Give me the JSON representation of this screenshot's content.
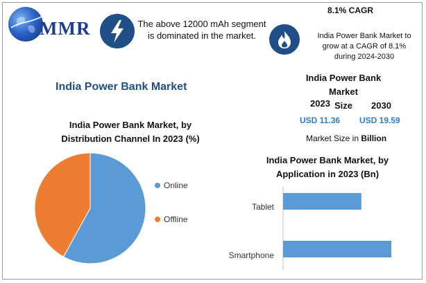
{
  "brand": {
    "logo_text": "MMR"
  },
  "segment_note": {
    "text_line1": "The above 12000 mAh segment",
    "text_line2": "is dominated in the market."
  },
  "cagr": {
    "title": "8.1% CAGR",
    "line1": "India Power Bank Market to",
    "line2": "grow at a CAGR of 8.1%",
    "line3": "during 2024-2030"
  },
  "main_title": "India Power Bank Market",
  "market_size": {
    "title_line1": "India Power Bank Market",
    "title_line2": "Size",
    "year_a": "2023",
    "value_a": "USD 11.36",
    "year_b": "2030",
    "value_b": "USD 19.59",
    "note_prefix": "Market Size in",
    "note_unit": "Billion"
  },
  "icons": {
    "segment": "lightning-bolt-icon",
    "cagr": "flame-icon",
    "logo": "globe-icon"
  },
  "colors": {
    "navy": "#1f4f86",
    "blue": "#5b9bd5",
    "orange": "#ed7d31",
    "usd": "#2e7cc7"
  },
  "chart_data": [
    {
      "type": "pie",
      "title_line1": "India Power Bank Market, by",
      "title_line2": "Distribution Channel In 2023 (%)",
      "categories": [
        "Online",
        "Offline"
      ],
      "values": [
        58,
        42
      ],
      "colors": [
        "#5b9bd5",
        "#ed7d31"
      ],
      "legend": "right"
    },
    {
      "type": "bar",
      "orientation": "horizontal",
      "title_line1": "India Power Bank Market, by",
      "title_line2": "Application in 2023 (Bn)",
      "categories": [
        "Tablet",
        "Smartphone"
      ],
      "values": [
        4.7,
        6.5
      ],
      "xlim": [
        0,
        7
      ],
      "color": "#5b9bd5"
    }
  ]
}
